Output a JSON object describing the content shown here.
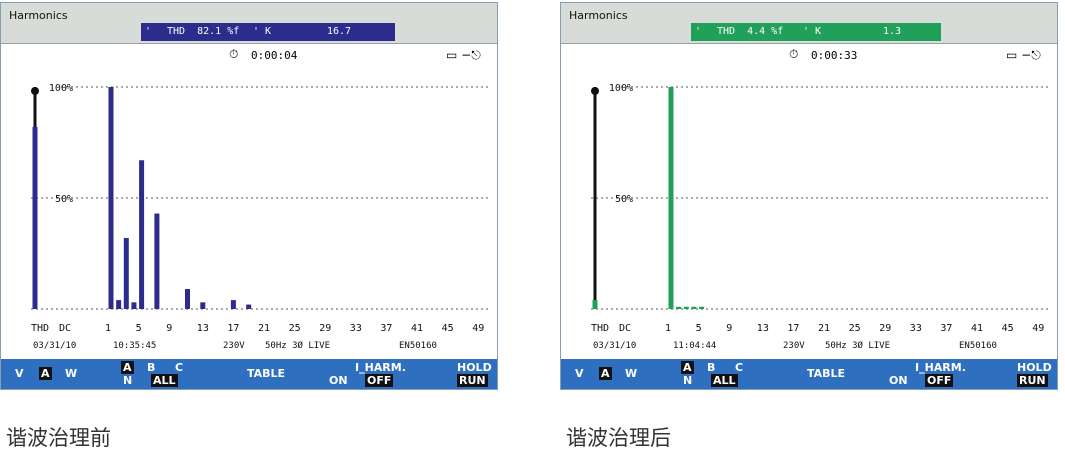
{
  "colors": {
    "before_accent": "#2c2c8c",
    "after_accent": "#21a05a",
    "fn_bar": "#2f6fc0"
  },
  "panels": [
    {
      "title": "Harmonics",
      "thd_text": "THD  82.1 %f",
      "k_label": "K",
      "k_value": "16.7",
      "clock": "0:00:04",
      "date": "03/31/10",
      "time": "10:35:45",
      "voltage": "230V",
      "freq_mode": "50Hz 3Ø LIVE",
      "standard": "EN50160",
      "caption": "谐波治理前"
    },
    {
      "title": "Harmonics",
      "thd_text": "THD  4.4 %f",
      "k_label": "K",
      "k_value": "1.3",
      "clock": "0:00:33",
      "date": "03/31/10",
      "time": "11:04:44",
      "voltage": "230V",
      "freq_mode": "50Hz 3Ø LIVE",
      "standard": "EN50160",
      "caption": "谐波治理后"
    }
  ],
  "fn_keys": {
    "v": "V",
    "a": "A",
    "w": "W",
    "a2": "A",
    "n": "N",
    "b": "B",
    "c": "C",
    "all": "ALL",
    "table": "TABLE",
    "iharm": "I_HARM.",
    "on": "ON",
    "off": "OFF",
    "hold": "HOLD",
    "run": "RUN"
  },
  "chart_data": [
    {
      "type": "bar",
      "title": "Harmonics",
      "ylim": [
        0,
        100
      ],
      "yticks": [
        "100%",
        "50%"
      ],
      "xticks": [
        "THD",
        "DC",
        "1",
        "5",
        "9",
        "13",
        "17",
        "21",
        "25",
        "29",
        "33",
        "37",
        "41",
        "45",
        "49"
      ],
      "series": [
        {
          "values": [
            {
              "x": "THD",
              "y": 82
            },
            {
              "x": "1",
              "y": 100
            },
            {
              "x": "2",
              "y": 4
            },
            {
              "x": "3",
              "y": 32
            },
            {
              "x": "4",
              "y": 3
            },
            {
              "x": "5",
              "y": 67
            },
            {
              "x": "7",
              "y": 43
            },
            {
              "x": "11",
              "y": 9
            },
            {
              "x": "13",
              "y": 3
            },
            {
              "x": "17",
              "y": 4
            },
            {
              "x": "19",
              "y": 2
            }
          ]
        }
      ],
      "grid": "dashed"
    },
    {
      "type": "bar",
      "title": "Harmonics",
      "ylim": [
        0,
        100
      ],
      "yticks": [
        "100%",
        "50%"
      ],
      "xticks": [
        "THD",
        "DC",
        "1",
        "5",
        "9",
        "13",
        "17",
        "21",
        "25",
        "29",
        "33",
        "37",
        "41",
        "45",
        "49"
      ],
      "series": [
        {
          "values": [
            {
              "x": "THD",
              "y": 4
            },
            {
              "x": "1",
              "y": 100
            },
            {
              "x": "2",
              "y": 1
            },
            {
              "x": "3",
              "y": 1
            },
            {
              "x": "4",
              "y": 1
            },
            {
              "x": "5",
              "y": 1
            }
          ]
        }
      ],
      "grid": "dashed"
    }
  ]
}
